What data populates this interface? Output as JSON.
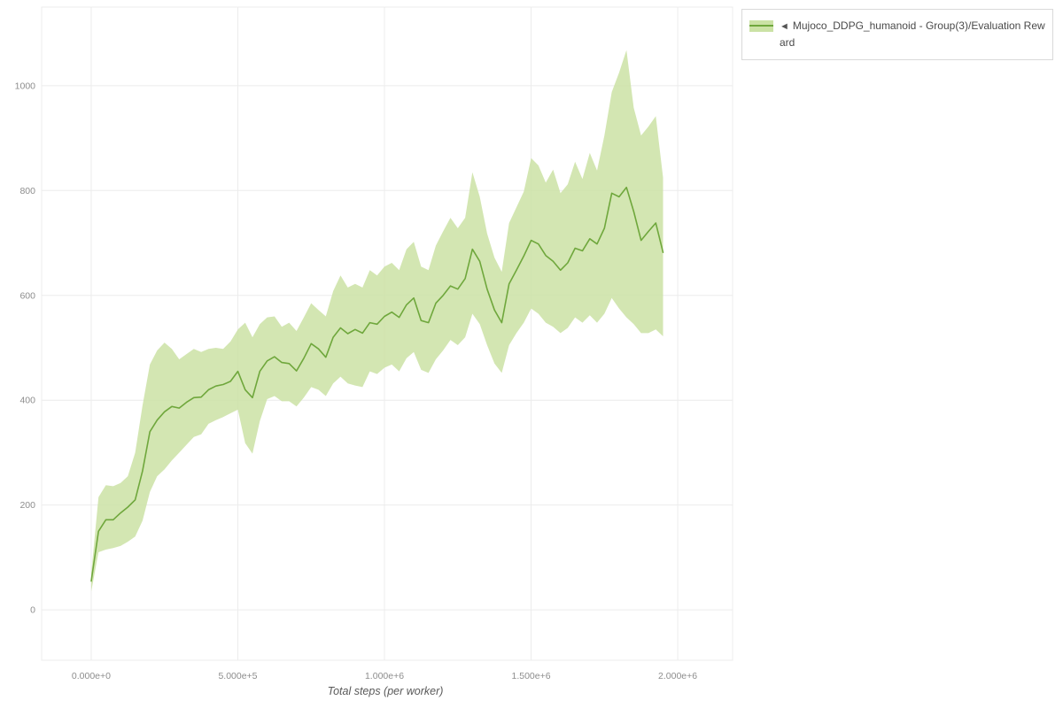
{
  "page": {
    "background": "#ffffff"
  },
  "legend": {
    "collapse_icon": "◄",
    "label": "Mujoco_DDPG_humanoid - Group(3)/Evaluation Reward"
  },
  "chart_data": {
    "type": "line",
    "title": "",
    "xlabel": "Total steps (per worker)",
    "ylabel": "",
    "grid": true,
    "legend_position": "top-right",
    "series_name": "Mujoco_DDPG_humanoid - Group(3)/Evaluation Reward",
    "xlim": [
      -169000,
      2187000
    ],
    "ylim": [
      -96,
      1150
    ],
    "x_ticks": [
      {
        "value": 0,
        "label": "0.000e+0"
      },
      {
        "value": 500000,
        "label": "5.000e+5"
      },
      {
        "value": 1000000,
        "label": "1.000e+6"
      },
      {
        "value": 1500000,
        "label": "1.500e+6"
      },
      {
        "value": 2000000,
        "label": "2.000e+6"
      }
    ],
    "y_ticks": [
      {
        "value": 0,
        "label": "0"
      },
      {
        "value": 200,
        "label": "200"
      },
      {
        "value": 400,
        "label": "400"
      },
      {
        "value": 600,
        "label": "600"
      },
      {
        "value": 800,
        "label": "800"
      },
      {
        "value": 1000,
        "label": "1000"
      }
    ],
    "x_start": 0,
    "x_step": 25000,
    "mean": [
      55,
      150,
      172,
      172,
      185,
      196,
      210,
      265,
      340,
      362,
      378,
      388,
      385,
      396,
      405,
      406,
      420,
      427,
      430,
      436,
      455,
      420,
      405,
      455,
      475,
      483,
      472,
      470,
      456,
      480,
      508,
      498,
      482,
      520,
      538,
      527,
      535,
      528,
      548,
      545,
      560,
      568,
      558,
      582,
      595,
      552,
      548,
      585,
      600,
      618,
      612,
      632,
      688,
      665,
      612,
      572,
      548,
      622,
      648,
      675,
      705,
      698,
      676,
      665,
      648,
      662,
      690,
      685,
      708,
      698,
      728,
      795,
      788,
      806,
      760,
      705,
      722,
      738,
      682
    ],
    "lower": [
      35,
      110,
      115,
      118,
      122,
      130,
      140,
      170,
      225,
      255,
      268,
      285,
      300,
      315,
      330,
      335,
      355,
      362,
      368,
      375,
      382,
      318,
      298,
      360,
      402,
      408,
      398,
      398,
      388,
      405,
      425,
      420,
      408,
      432,
      445,
      432,
      428,
      425,
      455,
      450,
      462,
      468,
      455,
      480,
      492,
      458,
      452,
      478,
      495,
      515,
      505,
      520,
      565,
      545,
      505,
      470,
      452,
      505,
      528,
      548,
      575,
      565,
      548,
      540,
      528,
      538,
      558,
      548,
      562,
      548,
      565,
      595,
      575,
      558,
      545,
      528,
      528,
      535,
      522
    ],
    "upper": [
      70,
      215,
      238,
      236,
      242,
      255,
      300,
      390,
      468,
      495,
      510,
      498,
      478,
      488,
      498,
      492,
      498,
      500,
      498,
      512,
      535,
      548,
      520,
      545,
      558,
      560,
      540,
      548,
      532,
      558,
      585,
      572,
      560,
      608,
      638,
      615,
      622,
      615,
      648,
      638,
      655,
      662,
      648,
      688,
      702,
      655,
      648,
      695,
      722,
      748,
      728,
      748,
      835,
      788,
      718,
      672,
      645,
      738,
      768,
      798,
      862,
      848,
      815,
      840,
      795,
      812,
      855,
      822,
      872,
      838,
      905,
      988,
      1025,
      1068,
      958,
      905,
      922,
      942,
      825
    ],
    "colors": {
      "line": "#6fa73c",
      "band": "#cbe2a5",
      "grid": "#ececec",
      "tick_text": "#8d8d8d",
      "axis_title": "#595959"
    }
  }
}
